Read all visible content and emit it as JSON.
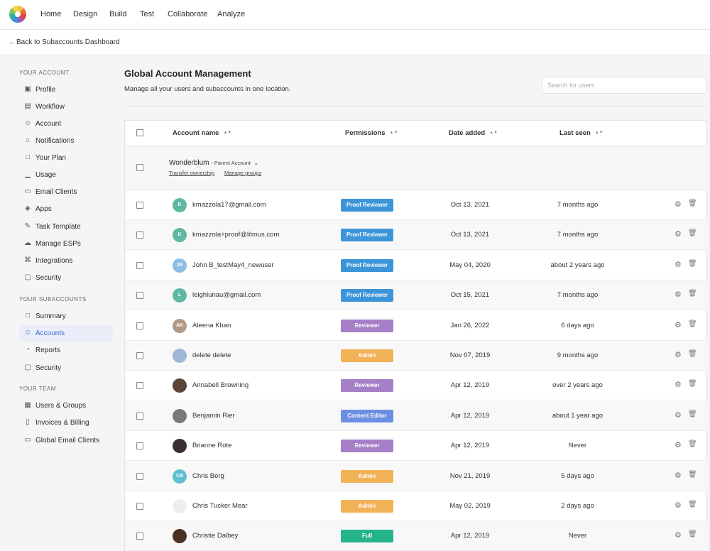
{
  "nav": {
    "items": [
      "Home",
      "Design",
      "Build",
      "Test",
      "Collaborate",
      "Analyze"
    ]
  },
  "subnav": {
    "back_label": "Back to Subaccounts Dashboard"
  },
  "sidebar": {
    "sections": [
      {
        "title": "YOUR ACCOUNT",
        "items": [
          {
            "label": "Profile",
            "icon": "camera-icon"
          },
          {
            "label": "Workflow",
            "icon": "map-icon"
          },
          {
            "label": "Account",
            "icon": "user-icon"
          },
          {
            "label": "Notifications",
            "icon": "bell-icon"
          },
          {
            "label": "Your Plan",
            "icon": "clipboard-icon"
          },
          {
            "label": "Usage",
            "icon": "bar-chart-icon"
          },
          {
            "label": "Email Clients",
            "icon": "toggle-icon"
          },
          {
            "label": "Apps",
            "icon": "layers-icon"
          },
          {
            "label": "Task Template",
            "icon": "edit-icon"
          },
          {
            "label": "Manage ESPs",
            "icon": "cloud-upload-icon"
          },
          {
            "label": "Integrations",
            "icon": "plug-icon"
          },
          {
            "label": "Security",
            "icon": "lock-icon"
          }
        ]
      },
      {
        "title": "YOUR SUBACCOUNTS",
        "items": [
          {
            "label": "Summary",
            "icon": "clipboard-icon"
          },
          {
            "label": "Accounts",
            "icon": "user-icon",
            "active": true
          },
          {
            "label": "Reports",
            "icon": "pie-chart-icon"
          },
          {
            "label": "Security",
            "icon": "lock-icon"
          }
        ]
      },
      {
        "title": "YOUR TEAM",
        "items": [
          {
            "label": "Users & Groups",
            "icon": "briefcase-icon"
          },
          {
            "label": "Invoices & Billing",
            "icon": "file-icon"
          },
          {
            "label": "Global Email Clients",
            "icon": "toggle-icon"
          }
        ]
      }
    ]
  },
  "main": {
    "title": "Global Account Management",
    "subtitle": "Manage all your users and subaccounts in one location.",
    "search_placeholder": "Search for users"
  },
  "table": {
    "columns": [
      "Account name",
      "Permissions",
      "Date added",
      "Last seen"
    ],
    "parent": {
      "name": "Wonderblum",
      "tag": "- Parent Account",
      "links": [
        "Transfer ownership",
        "Manage groups"
      ]
    },
    "rows": [
      {
        "initials": "K",
        "avatar_color": "#5fb8a1",
        "name": "kmazzola17@gmail.com",
        "permission": "Proof Reviewer",
        "perm_color": "#3c95d8",
        "date": "Oct 13, 2021",
        "seen": "7 months ago"
      },
      {
        "initials": "K",
        "avatar_color": "#5fb8a1",
        "name": "kmazzola+proof@litmus.com",
        "permission": "Proof Reviewer",
        "perm_color": "#3c95d8",
        "date": "Oct 13, 2021",
        "seen": "7 months ago"
      },
      {
        "initials": "JB",
        "avatar_color": "#8cbde6",
        "name": "John B_testMay4_newuser",
        "permission": "Proof Reviewer",
        "perm_color": "#3c95d8",
        "date": "May 04, 2020",
        "seen": "about 2 years ago"
      },
      {
        "initials": "L",
        "avatar_color": "#5fb8a1",
        "name": "leighlunau@gmail.com",
        "permission": "Proof Reviewer",
        "perm_color": "#3c95d8",
        "date": "Oct 15, 2021",
        "seen": "7 months ago"
      },
      {
        "initials": "AK",
        "avatar_color": "#b09a86",
        "name": "Aleena Khan",
        "permission": "Reviewer",
        "perm_color": "#a57fc7",
        "date": "Jan 26, 2022",
        "seen": "6 days ago"
      },
      {
        "initials": "",
        "avatar_color": "#9fb7d6",
        "name": "delete delete",
        "permission": "Admin",
        "perm_color": "#f2b257",
        "date": "Nov 07, 2019",
        "seen": "9 months ago"
      },
      {
        "initials": "",
        "avatar_color": "#5a4538",
        "name": "Annabell Browning",
        "permission": "Reviewer",
        "perm_color": "#a57fc7",
        "date": "Apr 12, 2019",
        "seen": "over 2 years ago"
      },
      {
        "initials": "",
        "avatar_color": "#7a7a7a",
        "name": "Benjamin Rier",
        "permission": "Content Editor",
        "perm_color": "#6b8fe3",
        "date": "Apr 12, 2019",
        "seen": "about 1 year ago"
      },
      {
        "initials": "",
        "avatar_color": "#3a2f2f",
        "name": "Brianne Rote",
        "permission": "Reviewer",
        "perm_color": "#a57fc7",
        "date": "Apr 12, 2019",
        "seen": "Never"
      },
      {
        "initials": "CB",
        "avatar_color": "#5fbfd0",
        "name": "Chris Berg",
        "permission": "Admin",
        "perm_color": "#f2b257",
        "date": "Nov 21, 2019",
        "seen": "5 days ago"
      },
      {
        "initials": "",
        "avatar_color": "#eeeeee",
        "name": "Chris Tucker Mear",
        "permission": "Admin",
        "perm_color": "#f2b257",
        "date": "May 02, 2019",
        "seen": "2 days ago"
      },
      {
        "initials": "",
        "avatar_color": "#4a3020",
        "name": "Christie Dalbey",
        "permission": "Full",
        "perm_color": "#25b38a",
        "date": "Apr 12, 2019",
        "seen": "Never"
      }
    ]
  }
}
